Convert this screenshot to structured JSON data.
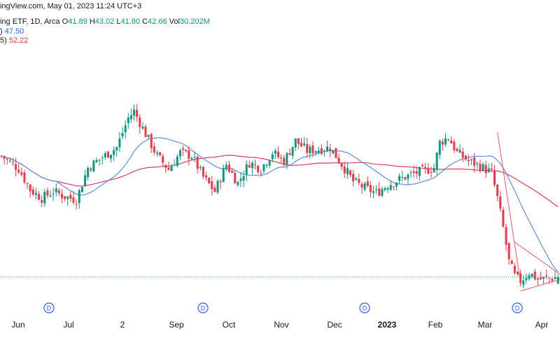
{
  "header": {
    "source_line": "ingView.com, May 01, 2023 11:24 UTC+3",
    "symbol_line": "ing ETF, 1D, Arca",
    "o_label": "O",
    "o_value": "41.89",
    "h_label": "H",
    "h_value": "43.02",
    "l_label": "L",
    "l_value": "41.80",
    "c_label": "C",
    "c_value": "42.66",
    "vol_label": "Vol",
    "vol_value": "30.202M",
    "ma1_prefix": ")",
    "ma1_value": "47.50",
    "ma2_prefix": "5)",
    "ma2_value": "52.22"
  },
  "colors": {
    "up": "#089981",
    "down": "#f23645",
    "ma_fast": "#5b8ef0",
    "ma_slow": "#e8395c",
    "trendline": "#f0545e",
    "dividend": "#2962ff"
  },
  "chart_data": {
    "type": "candlestick",
    "x_ticks": [
      "Jun",
      "Jul",
      "2",
      "Sep",
      "Oct",
      "Nov",
      "Dec",
      "2023",
      "Feb",
      "Mar",
      "Apr"
    ],
    "dividend_label": "D",
    "dividend_count": 4,
    "last_price_line": 42.66,
    "seed_ohlc": [
      [
        56.2,
        57.5,
        55.6,
        57.1
      ],
      [
        57.1,
        58.4,
        56.7,
        58.0
      ],
      [
        58.0,
        58.6,
        56.9,
        57.2
      ],
      [
        57.2,
        58.1,
        56.3,
        56.8
      ],
      [
        56.8,
        57.9,
        56.1,
        57.6
      ],
      [
        57.6,
        58.8,
        57.2,
        58.3
      ],
      [
        58.3,
        59.2,
        57.6,
        57.9
      ],
      [
        57.9,
        58.5,
        56.4,
        56.7
      ],
      [
        56.7,
        57.2,
        54.9,
        55.3
      ],
      [
        55.3,
        55.9,
        53.8,
        54.1
      ]
    ],
    "series": [
      {
        "name": "47.50",
        "type": "ma_fast"
      },
      {
        "name": "52.22",
        "type": "ma_slow"
      }
    ]
  }
}
